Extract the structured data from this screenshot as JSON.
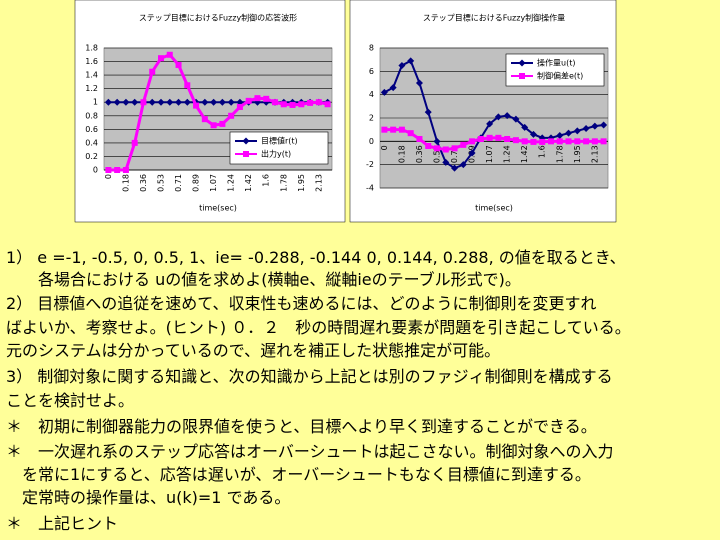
{
  "chart_data": [
    {
      "type": "line",
      "title": "ステップ目標におけるFuzzy制御の応答波形",
      "x_label": "time(sec)",
      "categories": [
        "0",
        null,
        "0.18",
        null,
        "0.36",
        null,
        "0.53",
        null,
        "0.71",
        null,
        "0.89",
        null,
        "1.07",
        null,
        "1.24",
        null,
        "1.42",
        null,
        "1.6",
        null,
        "1.78",
        null,
        "1.95",
        null,
        "2.13",
        null
      ],
      "series": [
        {
          "name": "目標値r(t)",
          "color": "#000080",
          "marker": "diamond",
          "values": [
            1,
            1,
            1,
            1,
            1,
            1,
            1,
            1,
            1,
            1,
            1,
            1,
            1,
            1,
            1,
            1,
            1,
            1,
            1,
            1,
            1,
            1,
            1,
            1,
            1,
            1
          ]
        },
        {
          "name": "出力y(t)",
          "color": "#ff00ff",
          "marker": "square",
          "values": [
            0,
            0,
            0,
            0.4,
            1.0,
            1.45,
            1.65,
            1.7,
            1.55,
            1.25,
            0.95,
            0.75,
            0.66,
            0.68,
            0.8,
            0.93,
            1.02,
            1.06,
            1.05,
            1.0,
            0.97,
            0.96,
            0.97,
            0.99,
            1.0,
            0.97
          ]
        }
      ],
      "ylim": [
        0,
        1.8
      ],
      "yticks": [
        0,
        0.2,
        0.4,
        0.6,
        0.8,
        1,
        1.2,
        1.4,
        1.6,
        1.8
      ],
      "grid": true,
      "legend": "lower right"
    },
    {
      "type": "line",
      "title": "ステップ目標におけるFuzzy制御操作量",
      "x_label": "time(sec)",
      "categories": [
        "0",
        null,
        "0.18",
        null,
        "0.36",
        null,
        "0.53",
        null,
        "0.71",
        null,
        "0.89",
        null,
        "1.07",
        null,
        "1.24",
        null,
        "1.42",
        null,
        "1.6",
        null,
        "1.78",
        null,
        "1.95",
        null,
        "2.13",
        null
      ],
      "series": [
        {
          "name": "操作量u(t)",
          "color": "#000080",
          "marker": "diamond",
          "values": [
            4.2,
            4.6,
            6.5,
            6.9,
            5.0,
            2.5,
            0,
            -1.8,
            -2.3,
            -2.0,
            -1.0,
            0.3,
            1.5,
            2.1,
            2.2,
            1.9,
            1.2,
            0.6,
            0.3,
            0.3,
            0.5,
            0.7,
            0.9,
            1.1,
            1.3,
            1.4
          ]
        },
        {
          "name": "制御偏差e(t)",
          "color": "#ff00ff",
          "marker": "square",
          "values": [
            1,
            1,
            1,
            0.7,
            0.2,
            -0.4,
            -0.6,
            -0.7,
            -0.6,
            -0.3,
            0,
            0.2,
            0.3,
            0.3,
            0.2,
            0.1,
            0,
            -0.05,
            -0.05,
            0,
            0,
            0,
            0,
            0,
            0,
            0
          ]
        }
      ],
      "ylim": [
        -4,
        8
      ],
      "yticks": [
        -4,
        -2,
        0,
        2,
        4,
        6,
        8
      ],
      "grid": true,
      "legend": "upper right"
    }
  ],
  "text": [
    "1） e =-1, -0.5, 0, 0.5, 1、ie= -0.288, -0.144 0, 0.144, 0.288, の値を取るとき、",
    "　　各場合における uの値を求めよ(横軸e、縦軸ieのテーブル形式で)。",
    "2） 目標値への追従を速めて、収束性も速めるには、どのように制御則を変更すれ",
    "ばよいか、考察せよ。(ヒント) ０．２　秒の時間遅れ要素が問題を引き起こしている。",
    "元のシステムは分かっているので、遅れを補正した状態推定が可能。",
    "3） 制御対象に関する知識と、次の知識から上記とは別のファジィ制御則を構成する",
    "ことを検討せよ。",
    "＊　初期に制御器能力の限界値を使うと、目標へより早く到達することができる。",
    "＊　一次遅れ系のステップ応答はオーバーシュートは起こさない。制御対象への入力",
    "　を常に1にすると、応答は遅いが、オーバーシュートもなく目標値に到達する。",
    "　定常時の操作量は、u(k)=1 である。",
    "＊　上記ヒント"
  ]
}
